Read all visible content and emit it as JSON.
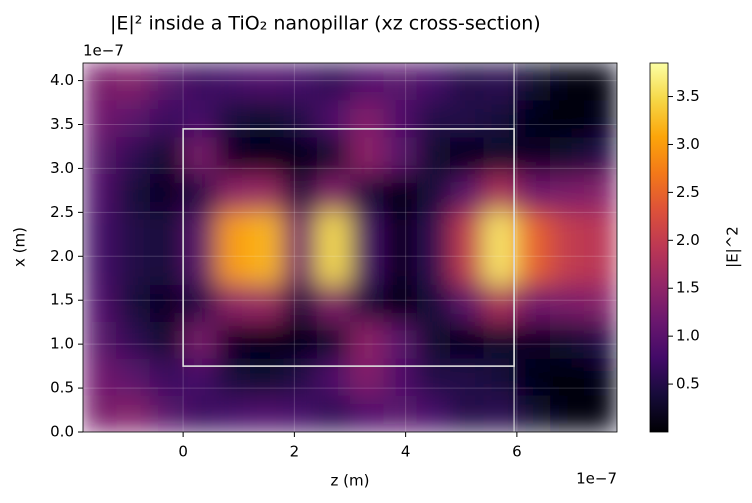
{
  "chart_data": {
    "type": "heatmap",
    "title": "|E|² inside a TiO₂ nanopillar (xz cross-section)",
    "x_label": "z (m)",
    "y_label": "x (m)",
    "x_offset_label": "1e−7",
    "y_offset_label": "1e−7",
    "colorbar_label": "|E|^2",
    "colormap": "inferno",
    "grid": true,
    "xlim": [
      -1.8e-07,
      7.8e-07
    ],
    "ylim": [
      0,
      4.2e-07
    ],
    "clim": [
      0,
      3.85
    ],
    "xticks": [
      {
        "value": 0,
        "label": "0"
      },
      {
        "value": 2e-07,
        "label": "2"
      },
      {
        "value": 4e-07,
        "label": "4"
      },
      {
        "value": 6e-07,
        "label": "6"
      }
    ],
    "yticks": [
      {
        "value": 0,
        "label": "0.0"
      },
      {
        "value": 5e-08,
        "label": "0.5"
      },
      {
        "value": 1e-07,
        "label": "1.0"
      },
      {
        "value": 1.5e-07,
        "label": "1.5"
      },
      {
        "value": 2e-07,
        "label": "2.0"
      },
      {
        "value": 2.5e-07,
        "label": "2.5"
      },
      {
        "value": 3e-07,
        "label": "3.0"
      },
      {
        "value": 3.5e-07,
        "label": "3.5"
      },
      {
        "value": 4e-07,
        "label": "4.0"
      }
    ],
    "cticks": [
      0.5,
      {
        "value": 1,
        "label": "1.0"
      },
      1.5,
      {
        "value": 2,
        "label": "2.0"
      },
      2.5,
      {
        "value": 3,
        "label": "3.0"
      },
      3.5
    ],
    "pillar": {
      "z": [
        0,
        5.95e-07
      ],
      "x": [
        7.5e-08,
        3.45e-07
      ]
    },
    "interface_z": 5.95e-07,
    "z_centers": [
      -1.5e-07,
      -9e-08,
      -3e-08,
      3e-08,
      9e-08,
      1.5e-07,
      2.1e-07,
      2.7e-07,
      3.3e-07,
      3.9e-07,
      4.5e-07,
      5.1e-07,
      5.7e-07,
      6.3e-07,
      6.9e-07,
      7.5e-07
    ],
    "x_centers": [
      2.1e-08,
      6.3e-08,
      1.05e-07,
      1.47e-07,
      1.89e-07,
      2.31e-07,
      2.73e-07,
      3.15e-07,
      3.57e-07,
      3.99e-07
    ],
    "values": [
      [
        1.3,
        1.4,
        1.0,
        0.7,
        0.8,
        0.9,
        0.8,
        0.6,
        0.9,
        1.0,
        0.8,
        0.5,
        0.6,
        0.3,
        0.05,
        0.05
      ],
      [
        1.2,
        1.0,
        0.7,
        0.8,
        0.4,
        0.3,
        0.5,
        0.9,
        1.4,
        0.9,
        0.5,
        0.5,
        0.4,
        0.1,
        0.05,
        0.1
      ],
      [
        1.0,
        0.6,
        0.3,
        1.3,
        0.2,
        0.1,
        0.1,
        0.3,
        1.5,
        1.0,
        0.3,
        0.1,
        0.3,
        0.2,
        0.3,
        0.5
      ],
      [
        0.9,
        0.4,
        0.2,
        0.5,
        1.5,
        1.6,
        0.4,
        1.4,
        0.4,
        0.05,
        0.4,
        1.0,
        1.8,
        1.2,
        1.3,
        1.4
      ],
      [
        0.8,
        0.5,
        0.4,
        1.0,
        3.0,
        3.2,
        1.2,
        3.5,
        0.8,
        0.1,
        0.6,
        2.0,
        3.6,
        2.5,
        2.0,
        1.9
      ],
      [
        0.8,
        0.5,
        0.4,
        1.0,
        3.0,
        3.2,
        1.2,
        3.5,
        0.8,
        0.1,
        0.6,
        2.0,
        3.6,
        2.5,
        2.0,
        1.9
      ],
      [
        0.9,
        0.4,
        0.2,
        0.5,
        1.5,
        1.6,
        0.4,
        1.4,
        0.4,
        0.05,
        0.4,
        1.0,
        1.8,
        1.2,
        1.3,
        1.4
      ],
      [
        1.0,
        0.6,
        0.3,
        1.3,
        0.2,
        0.1,
        0.1,
        0.3,
        1.5,
        1.0,
        0.3,
        0.1,
        0.3,
        0.2,
        0.3,
        0.5
      ],
      [
        1.2,
        1.0,
        0.7,
        0.8,
        0.4,
        0.3,
        0.5,
        0.9,
        1.4,
        0.9,
        0.5,
        0.5,
        0.4,
        0.1,
        0.05,
        0.1
      ],
      [
        1.3,
        1.4,
        1.0,
        0.7,
        0.8,
        0.9,
        0.8,
        0.6,
        0.9,
        1.0,
        0.8,
        0.5,
        0.6,
        0.3,
        0.05,
        0.05
      ]
    ]
  }
}
